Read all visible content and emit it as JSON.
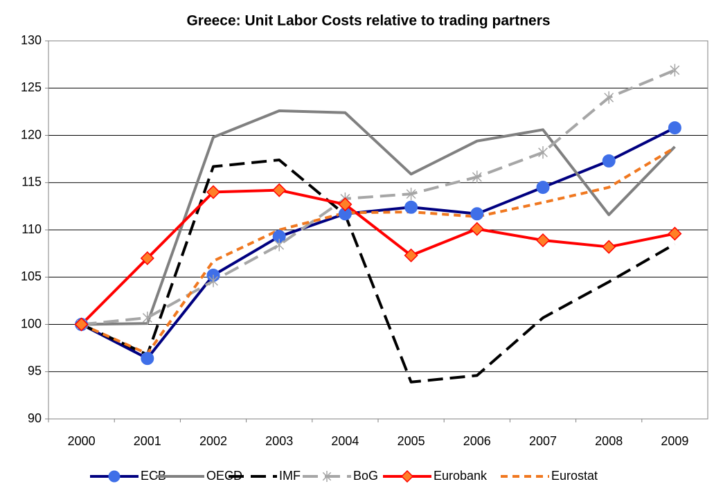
{
  "chart_data": {
    "type": "line",
    "title": "Greece: Unit Labor Costs relative to trading partners",
    "categories": [
      "2000",
      "2001",
      "2002",
      "2003",
      "2004",
      "2005",
      "2006",
      "2007",
      "2008",
      "2009"
    ],
    "ylim": [
      90,
      130
    ],
    "yticks": [
      90,
      95,
      100,
      105,
      110,
      115,
      120,
      125,
      130
    ],
    "grid": true,
    "legend": "bottom",
    "series": [
      {
        "name": "ECB",
        "color": "#000080",
        "dash": "solid",
        "marker": "circle",
        "marker_color": "#3f6fe8",
        "values": [
          100,
          96.4,
          105.2,
          109.3,
          111.7,
          112.4,
          111.7,
          114.5,
          117.3,
          120.8
        ]
      },
      {
        "name": "OECD",
        "color": "#808080",
        "dash": "solid",
        "marker": "none",
        "values": [
          100,
          100.1,
          119.8,
          122.6,
          122.4,
          115.9,
          119.4,
          120.6,
          111.6,
          118.8
        ]
      },
      {
        "name": "IMF",
        "color": "#000000",
        "dash": "dashed",
        "marker": "none",
        "values": [
          100,
          96.8,
          116.7,
          117.4,
          111.6,
          93.9,
          94.6,
          100.7,
          104.5,
          108.5
        ]
      },
      {
        "name": "BoG",
        "color": "#a6a6a6",
        "dash": "dashed",
        "marker": "star",
        "values": [
          100,
          100.7,
          104.6,
          108.4,
          113.3,
          113.8,
          115.6,
          118.2,
          124.0,
          126.9
        ]
      },
      {
        "name": "Eurobank",
        "color": "#ff0000",
        "dash": "solid",
        "marker": "diamond",
        "marker_color": "#ff7f27",
        "values": [
          100,
          107.0,
          114.0,
          114.2,
          112.7,
          107.3,
          110.1,
          108.9,
          108.2,
          109.6
        ]
      },
      {
        "name": "Eurostat",
        "color": "#f07820",
        "dash": "dotted",
        "marker": "none",
        "values": [
          100,
          96.9,
          106.7,
          110.0,
          111.8,
          111.9,
          111.4,
          112.9,
          114.5,
          118.7
        ]
      }
    ]
  }
}
